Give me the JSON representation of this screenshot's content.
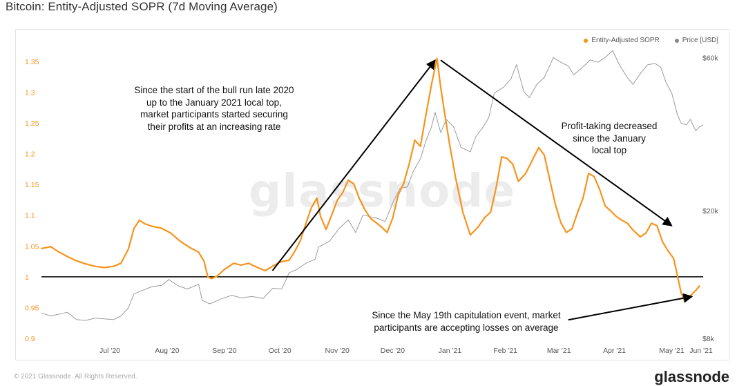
{
  "page": {
    "title": "Bitcoin: Entity-Adjusted SOPR (7d Moving Average)",
    "watermark": "glassnode",
    "copyright": "© 2021 Glassnode. All Rights Reserved.",
    "brand": "glassnode"
  },
  "legend": [
    {
      "label": "Entity-Adjusted SOPR",
      "color": "#f7931a"
    },
    {
      "label": "Price [USD]",
      "color": "#888888"
    }
  ],
  "annotations": [
    {
      "lines": [
        "Since the start of the bull run late 2020",
        "up to the January 2021 local top,",
        "market participants started securing",
        "their profits at an increasing rate"
      ]
    },
    {
      "lines": [
        "Profit-taking decreased",
        "since the January",
        "local top"
      ]
    },
    {
      "lines": [
        "Since the May 19th capitulation event, market",
        "participants are accepting losses on average"
      ]
    }
  ],
  "chart_data": {
    "type": "line",
    "title": "Bitcoin: Entity-Adjusted SOPR (7d Moving Average)",
    "x_tick_labels": [
      "Jul '20",
      "Aug '20",
      "Sep '20",
      "Oct '20",
      "Nov '20",
      "Dec '20",
      "Jan '21",
      "Feb '21",
      "Mar '21",
      "Apr '21",
      "May '21",
      "Jun '21"
    ],
    "x_range": [
      "2020-06-09",
      "2021-06-02"
    ],
    "y_left": {
      "ticks": [
        "0.9",
        "0.95",
        "1",
        "1.05",
        "1.1",
        "1.15",
        "1.2",
        "1.25",
        "1.3",
        "1.35"
      ],
      "range": [
        0.9,
        1.36
      ],
      "color": "#f7931a"
    },
    "y_right": {
      "scale": "log",
      "ticks": [
        "$8k",
        "$20k",
        "$60k"
      ],
      "tick_values": [
        8000,
        20000,
        60000
      ],
      "range": [
        8000,
        61000
      ]
    },
    "reference_line": {
      "value": 1.0,
      "color": "#000000"
    },
    "series": [
      {
        "name": "Entity-Adjusted SOPR",
        "axis": "left",
        "color": "#f7931a",
        "points": [
          [
            "2020-06-09",
            1.046
          ],
          [
            "2020-06-14",
            1.049
          ],
          [
            "2020-06-18",
            1.041
          ],
          [
            "2020-06-23",
            1.033
          ],
          [
            "2020-06-28",
            1.026
          ],
          [
            "2020-07-03",
            1.021
          ],
          [
            "2020-07-08",
            1.017
          ],
          [
            "2020-07-13",
            1.015
          ],
          [
            "2020-07-18",
            1.017
          ],
          [
            "2020-07-22",
            1.022
          ],
          [
            "2020-07-26",
            1.045
          ],
          [
            "2020-07-29",
            1.078
          ],
          [
            "2020-08-01",
            1.092
          ],
          [
            "2020-08-04",
            1.086
          ],
          [
            "2020-08-08",
            1.082
          ],
          [
            "2020-08-13",
            1.079
          ],
          [
            "2020-08-18",
            1.071
          ],
          [
            "2020-08-23",
            1.058
          ],
          [
            "2020-08-28",
            1.048
          ],
          [
            "2020-09-02",
            1.04
          ],
          [
            "2020-09-05",
            1.025
          ],
          [
            "2020-09-07",
            1.0
          ],
          [
            "2020-09-09",
            0.997
          ],
          [
            "2020-09-12",
            1.001
          ],
          [
            "2020-09-16",
            1.012
          ],
          [
            "2020-09-21",
            1.022
          ],
          [
            "2020-09-25",
            1.019
          ],
          [
            "2020-09-29",
            1.022
          ],
          [
            "2020-10-04",
            1.015
          ],
          [
            "2020-10-08",
            1.01
          ],
          [
            "2020-10-12",
            1.017
          ],
          [
            "2020-10-16",
            1.024
          ],
          [
            "2020-10-21",
            1.027
          ],
          [
            "2020-10-24",
            1.041
          ],
          [
            "2020-10-27",
            1.058
          ],
          [
            "2020-10-30",
            1.086
          ],
          [
            "2020-11-02",
            1.112
          ],
          [
            "2020-11-05",
            1.128
          ],
          [
            "2020-11-07",
            1.098
          ],
          [
            "2020-11-10",
            1.077
          ],
          [
            "2020-11-13",
            1.1
          ],
          [
            "2020-11-16",
            1.124
          ],
          [
            "2020-11-19",
            1.137
          ],
          [
            "2020-11-22",
            1.157
          ],
          [
            "2020-11-25",
            1.151
          ],
          [
            "2020-11-28",
            1.127
          ],
          [
            "2020-12-01",
            1.109
          ],
          [
            "2020-12-04",
            1.095
          ],
          [
            "2020-12-07",
            1.088
          ],
          [
            "2020-12-10",
            1.081
          ],
          [
            "2020-12-13",
            1.072
          ],
          [
            "2020-12-16",
            1.095
          ],
          [
            "2020-12-19",
            1.133
          ],
          [
            "2020-12-22",
            1.152
          ],
          [
            "2020-12-25",
            1.184
          ],
          [
            "2020-12-28",
            1.222
          ],
          [
            "2020-12-31",
            1.212
          ],
          [
            "2021-01-03",
            1.263
          ],
          [
            "2021-01-06",
            1.312
          ],
          [
            "2021-01-09",
            1.355
          ],
          [
            "2021-01-11",
            1.308
          ],
          [
            "2021-01-13",
            1.268
          ],
          [
            "2021-01-16",
            1.212
          ],
          [
            "2021-01-19",
            1.162
          ],
          [
            "2021-01-23",
            1.105
          ],
          [
            "2021-01-27",
            1.068
          ],
          [
            "2021-01-31",
            1.08
          ],
          [
            "2021-02-04",
            1.097
          ],
          [
            "2021-02-07",
            1.105
          ],
          [
            "2021-02-10",
            1.145
          ],
          [
            "2021-02-13",
            1.195
          ],
          [
            "2021-02-16",
            1.192
          ],
          [
            "2021-02-19",
            1.183
          ],
          [
            "2021-02-22",
            1.155
          ],
          [
            "2021-02-26",
            1.168
          ],
          [
            "2021-03-02",
            1.192
          ],
          [
            "2021-03-05",
            1.21
          ],
          [
            "2021-03-08",
            1.198
          ],
          [
            "2021-03-11",
            1.158
          ],
          [
            "2021-03-14",
            1.118
          ],
          [
            "2021-03-17",
            1.088
          ],
          [
            "2021-03-20",
            1.072
          ],
          [
            "2021-03-23",
            1.078
          ],
          [
            "2021-03-26",
            1.104
          ],
          [
            "2021-03-29",
            1.128
          ],
          [
            "2021-04-01",
            1.168
          ],
          [
            "2021-04-04",
            1.163
          ],
          [
            "2021-04-07",
            1.142
          ],
          [
            "2021-04-10",
            1.115
          ],
          [
            "2021-04-13",
            1.107
          ],
          [
            "2021-04-16",
            1.098
          ],
          [
            "2021-04-19",
            1.092
          ],
          [
            "2021-04-22",
            1.087
          ],
          [
            "2021-04-25",
            1.076
          ],
          [
            "2021-04-29",
            1.065
          ],
          [
            "2021-05-02",
            1.071
          ],
          [
            "2021-05-05",
            1.087
          ],
          [
            "2021-05-08",
            1.083
          ],
          [
            "2021-05-11",
            1.057
          ],
          [
            "2021-05-14",
            1.042
          ],
          [
            "2021-05-17",
            1.03
          ],
          [
            "2021-05-19",
            1.003
          ],
          [
            "2021-05-21",
            0.975
          ],
          [
            "2021-05-23",
            0.96
          ],
          [
            "2021-05-25",
            0.966
          ],
          [
            "2021-05-27",
            0.972
          ],
          [
            "2021-05-29",
            0.978
          ],
          [
            "2021-05-31",
            0.985
          ]
        ]
      },
      {
        "name": "Price [USD]",
        "axis": "right",
        "color": "#888888",
        "points": [
          [
            "2020-06-09",
            9600
          ],
          [
            "2020-06-14",
            9400
          ],
          [
            "2020-06-18",
            9500
          ],
          [
            "2020-06-23",
            9650
          ],
          [
            "2020-06-28",
            9150
          ],
          [
            "2020-07-03",
            9100
          ],
          [
            "2020-07-08",
            9250
          ],
          [
            "2020-07-13",
            9200
          ],
          [
            "2020-07-18",
            9150
          ],
          [
            "2020-07-22",
            9400
          ],
          [
            "2020-07-26",
            9950
          ],
          [
            "2020-07-29",
            11000
          ],
          [
            "2020-08-02",
            11250
          ],
          [
            "2020-08-08",
            11600
          ],
          [
            "2020-08-13",
            11700
          ],
          [
            "2020-08-17",
            12200
          ],
          [
            "2020-08-22",
            11650
          ],
          [
            "2020-08-27",
            11400
          ],
          [
            "2020-09-02",
            11800
          ],
          [
            "2020-09-04",
            10500
          ],
          [
            "2020-09-08",
            10250
          ],
          [
            "2020-09-14",
            10600
          ],
          [
            "2020-09-20",
            10900
          ],
          [
            "2020-09-25",
            10700
          ],
          [
            "2020-10-01",
            10800
          ],
          [
            "2020-10-07",
            10650
          ],
          [
            "2020-10-12",
            11450
          ],
          [
            "2020-10-17",
            11400
          ],
          [
            "2020-10-21",
            12800
          ],
          [
            "2020-10-25",
            13100
          ],
          [
            "2020-10-30",
            13700
          ],
          [
            "2020-11-04",
            14100
          ],
          [
            "2020-11-06",
            15400
          ],
          [
            "2020-11-12",
            16100
          ],
          [
            "2020-11-17",
            17600
          ],
          [
            "2020-11-22",
            18700
          ],
          [
            "2020-11-26",
            17100
          ],
          [
            "2020-11-30",
            19400
          ],
          [
            "2020-12-03",
            19200
          ],
          [
            "2020-12-08",
            18900
          ],
          [
            "2020-12-12",
            18500
          ],
          [
            "2020-12-16",
            21100
          ],
          [
            "2020-12-20",
            23500
          ],
          [
            "2020-12-24",
            23700
          ],
          [
            "2020-12-27",
            26400
          ],
          [
            "2020-12-31",
            29000
          ],
          [
            "2021-01-03",
            33000
          ],
          [
            "2021-01-06",
            36500
          ],
          [
            "2021-01-08",
            40500
          ],
          [
            "2021-01-11",
            35000
          ],
          [
            "2021-01-14",
            38500
          ],
          [
            "2021-01-18",
            36500
          ],
          [
            "2021-01-22",
            31500
          ],
          [
            "2021-01-27",
            30500
          ],
          [
            "2021-01-30",
            34000
          ],
          [
            "2021-02-03",
            36500
          ],
          [
            "2021-02-06",
            39000
          ],
          [
            "2021-02-09",
            46500
          ],
          [
            "2021-02-14",
            48500
          ],
          [
            "2021-02-18",
            51500
          ],
          [
            "2021-02-21",
            57000
          ],
          [
            "2021-02-25",
            47000
          ],
          [
            "2021-02-28",
            45000
          ],
          [
            "2021-03-04",
            49500
          ],
          [
            "2021-03-08",
            52000
          ],
          [
            "2021-03-13",
            60000
          ],
          [
            "2021-03-17",
            58000
          ],
          [
            "2021-03-21",
            56500
          ],
          [
            "2021-03-24",
            53000
          ],
          [
            "2021-03-28",
            55500
          ],
          [
            "2021-04-02",
            59000
          ],
          [
            "2021-04-06",
            58000
          ],
          [
            "2021-04-10",
            60000
          ],
          [
            "2021-04-14",
            63000
          ],
          [
            "2021-04-18",
            56500
          ],
          [
            "2021-04-22",
            52000
          ],
          [
            "2021-04-25",
            49500
          ],
          [
            "2021-04-29",
            53500
          ],
          [
            "2021-05-03",
            57000
          ],
          [
            "2021-05-07",
            57500
          ],
          [
            "2021-05-10",
            56000
          ],
          [
            "2021-05-13",
            50000
          ],
          [
            "2021-05-16",
            46500
          ],
          [
            "2021-05-19",
            40000
          ],
          [
            "2021-05-21",
            37500
          ],
          [
            "2021-05-24",
            37000
          ],
          [
            "2021-05-26",
            38500
          ],
          [
            "2021-05-29",
            35500
          ],
          [
            "2021-05-31",
            36500
          ],
          [
            "2021-06-02",
            37000
          ]
        ]
      }
    ]
  }
}
